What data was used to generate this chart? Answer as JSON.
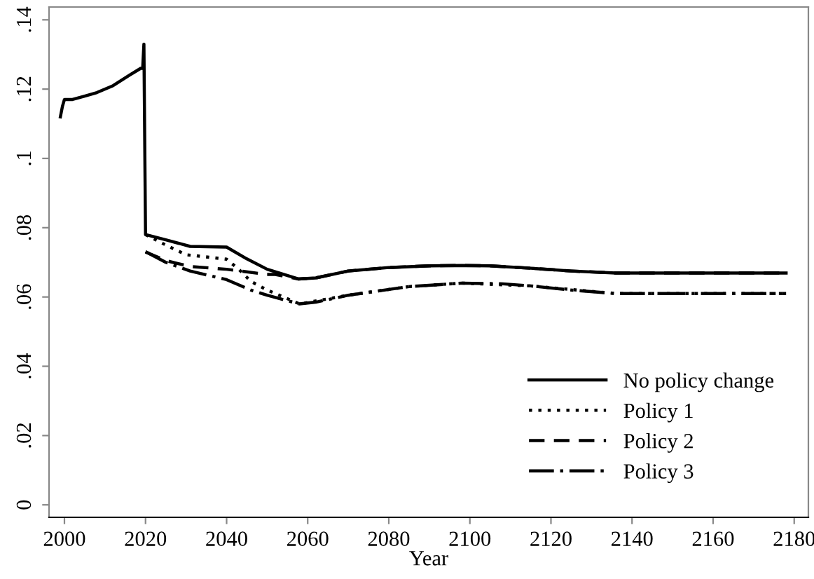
{
  "chart_data": {
    "type": "line",
    "xlabel": "Year",
    "xlim": [
      1996.2,
      2183.5
    ],
    "ylim": [
      -0.0036,
      0.1437
    ],
    "xticks": [
      2000,
      2020,
      2040,
      2060,
      2080,
      2100,
      2120,
      2140,
      2160,
      2180
    ],
    "yticks": [
      {
        "value": 0,
        "label": "0"
      },
      {
        "value": 0.02,
        "label": ".02"
      },
      {
        "value": 0.04,
        "label": ".04"
      },
      {
        "value": 0.06,
        "label": ".06"
      },
      {
        "value": 0.08,
        "label": ".08"
      },
      {
        "value": 0.1,
        "label": ".1"
      },
      {
        "value": 0.12,
        "label": ".12"
      },
      {
        "value": 0.14,
        "label": ".14"
      }
    ],
    "grid": false,
    "legend": "bottom right",
    "marker": "none",
    "series": [
      {
        "name": "No policy change",
        "color": "#000000",
        "line_style": "solid",
        "x": [
          1999,
          1999.5,
          2000,
          2002,
          2005,
          2008,
          2012,
          2016,
          2018.8,
          2019.3,
          2019.6,
          2020,
          2025,
          2031,
          2040,
          2045,
          2050,
          2057.7,
          2062,
          2070,
          2080,
          2090,
          2098,
          2105,
          2115,
          2125,
          2136,
          2150,
          2165,
          2178
        ],
        "values": [
          0.112,
          0.115,
          0.117,
          0.117,
          0.118,
          0.119,
          0.121,
          0.124,
          0.126,
          0.126,
          0.133,
          0.078,
          0.0765,
          0.0746,
          0.0744,
          0.071,
          0.068,
          0.0652,
          0.0655,
          0.0675,
          0.0685,
          0.069,
          0.0691,
          0.069,
          0.0683,
          0.0675,
          0.0669,
          0.0669,
          0.0669,
          0.0669
        ]
      },
      {
        "name": "Policy 1",
        "color": "#000000",
        "line_style": "dotted",
        "x": [
          2020,
          2025,
          2030,
          2040,
          2043,
          2046,
          2050,
          2058,
          2070,
          2085,
          2098,
          2115,
          2136,
          2178
        ],
        "values": [
          0.078,
          0.075,
          0.0722,
          0.0709,
          0.068,
          0.0645,
          0.062,
          0.058,
          0.0605,
          0.063,
          0.064,
          0.0632,
          0.061,
          0.061
        ]
      },
      {
        "name": "Policy 2",
        "color": "#000000",
        "line_style": "dashed",
        "x": [
          2020,
          2025,
          2031,
          2040,
          2050,
          2052,
          2057.7,
          2062,
          2070,
          2080,
          2090,
          2098,
          2105,
          2115,
          2125,
          2136,
          2150,
          2165,
          2178
        ],
        "values": [
          0.073,
          0.0705,
          0.0688,
          0.068,
          0.0665,
          0.0665,
          0.0652,
          0.0655,
          0.0675,
          0.0685,
          0.069,
          0.0691,
          0.069,
          0.0683,
          0.0675,
          0.0669,
          0.0669,
          0.0669,
          0.0669
        ]
      },
      {
        "name": "Policy 3",
        "color": "#000000",
        "line_style": "dashdot",
        "x": [
          2020,
          2025,
          2031,
          2040,
          2046,
          2050,
          2058,
          2062,
          2070,
          2085,
          2098,
          2108,
          2115,
          2125,
          2136,
          2150,
          2165,
          2178
        ],
        "values": [
          0.0731,
          0.07,
          0.0675,
          0.065,
          0.062,
          0.0605,
          0.058,
          0.0585,
          0.0605,
          0.063,
          0.064,
          0.0638,
          0.0632,
          0.062,
          0.061,
          0.061,
          0.061,
          0.061
        ]
      }
    ]
  }
}
